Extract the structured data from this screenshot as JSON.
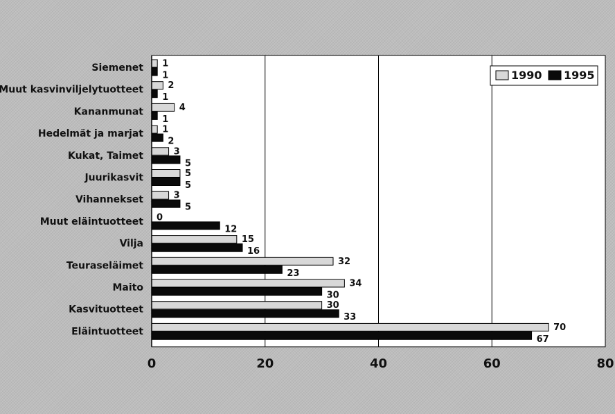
{
  "chart_data": {
    "type": "bar",
    "orientation": "horizontal",
    "categories": [
      "Siemenet",
      "Muut kasvinviljelytuotteet",
      "Kananmunat",
      "Hedelmät ja marjat",
      "Kukat, Taimet",
      "Juurikasvit",
      "Vihannekset",
      "Muut eläintuotteet",
      "Vilja",
      "Teuraseläimet",
      "Maito",
      "Kasvituotteet",
      "Eläintuotteet"
    ],
    "series": [
      {
        "name": "1990",
        "color": "#d8d8d8",
        "values": [
          1,
          2,
          4,
          1,
          3,
          5,
          3,
          0,
          15,
          32,
          34,
          30,
          70
        ],
        "labels": [
          "1",
          "2",
          "4",
          "1",
          "3",
          "5",
          "3",
          "0",
          "15",
          "32",
          "34",
          "30",
          "70"
        ]
      },
      {
        "name": "1995",
        "color": "#0a0a0a",
        "values": [
          1,
          1,
          1,
          2,
          5,
          5,
          5,
          12,
          16,
          23,
          30,
          33,
          67
        ],
        "labels": [
          "1",
          "1",
          "1",
          "2",
          "5",
          "5",
          "5",
          "12",
          "16",
          "23",
          "30",
          "33",
          "67"
        ]
      }
    ],
    "xlim": [
      0,
      80
    ],
    "xticks": [
      "0",
      "20",
      "40",
      "60",
      "80"
    ],
    "title": "",
    "xlabel": "",
    "ylabel": "",
    "grid": "vertical",
    "legend": "top-right",
    "colors": {
      "background": "#bdbdbd",
      "plot_area": "#ffffff",
      "bar_1990": "#d8d8d8",
      "bar_1995": "#0a0a0a"
    }
  }
}
